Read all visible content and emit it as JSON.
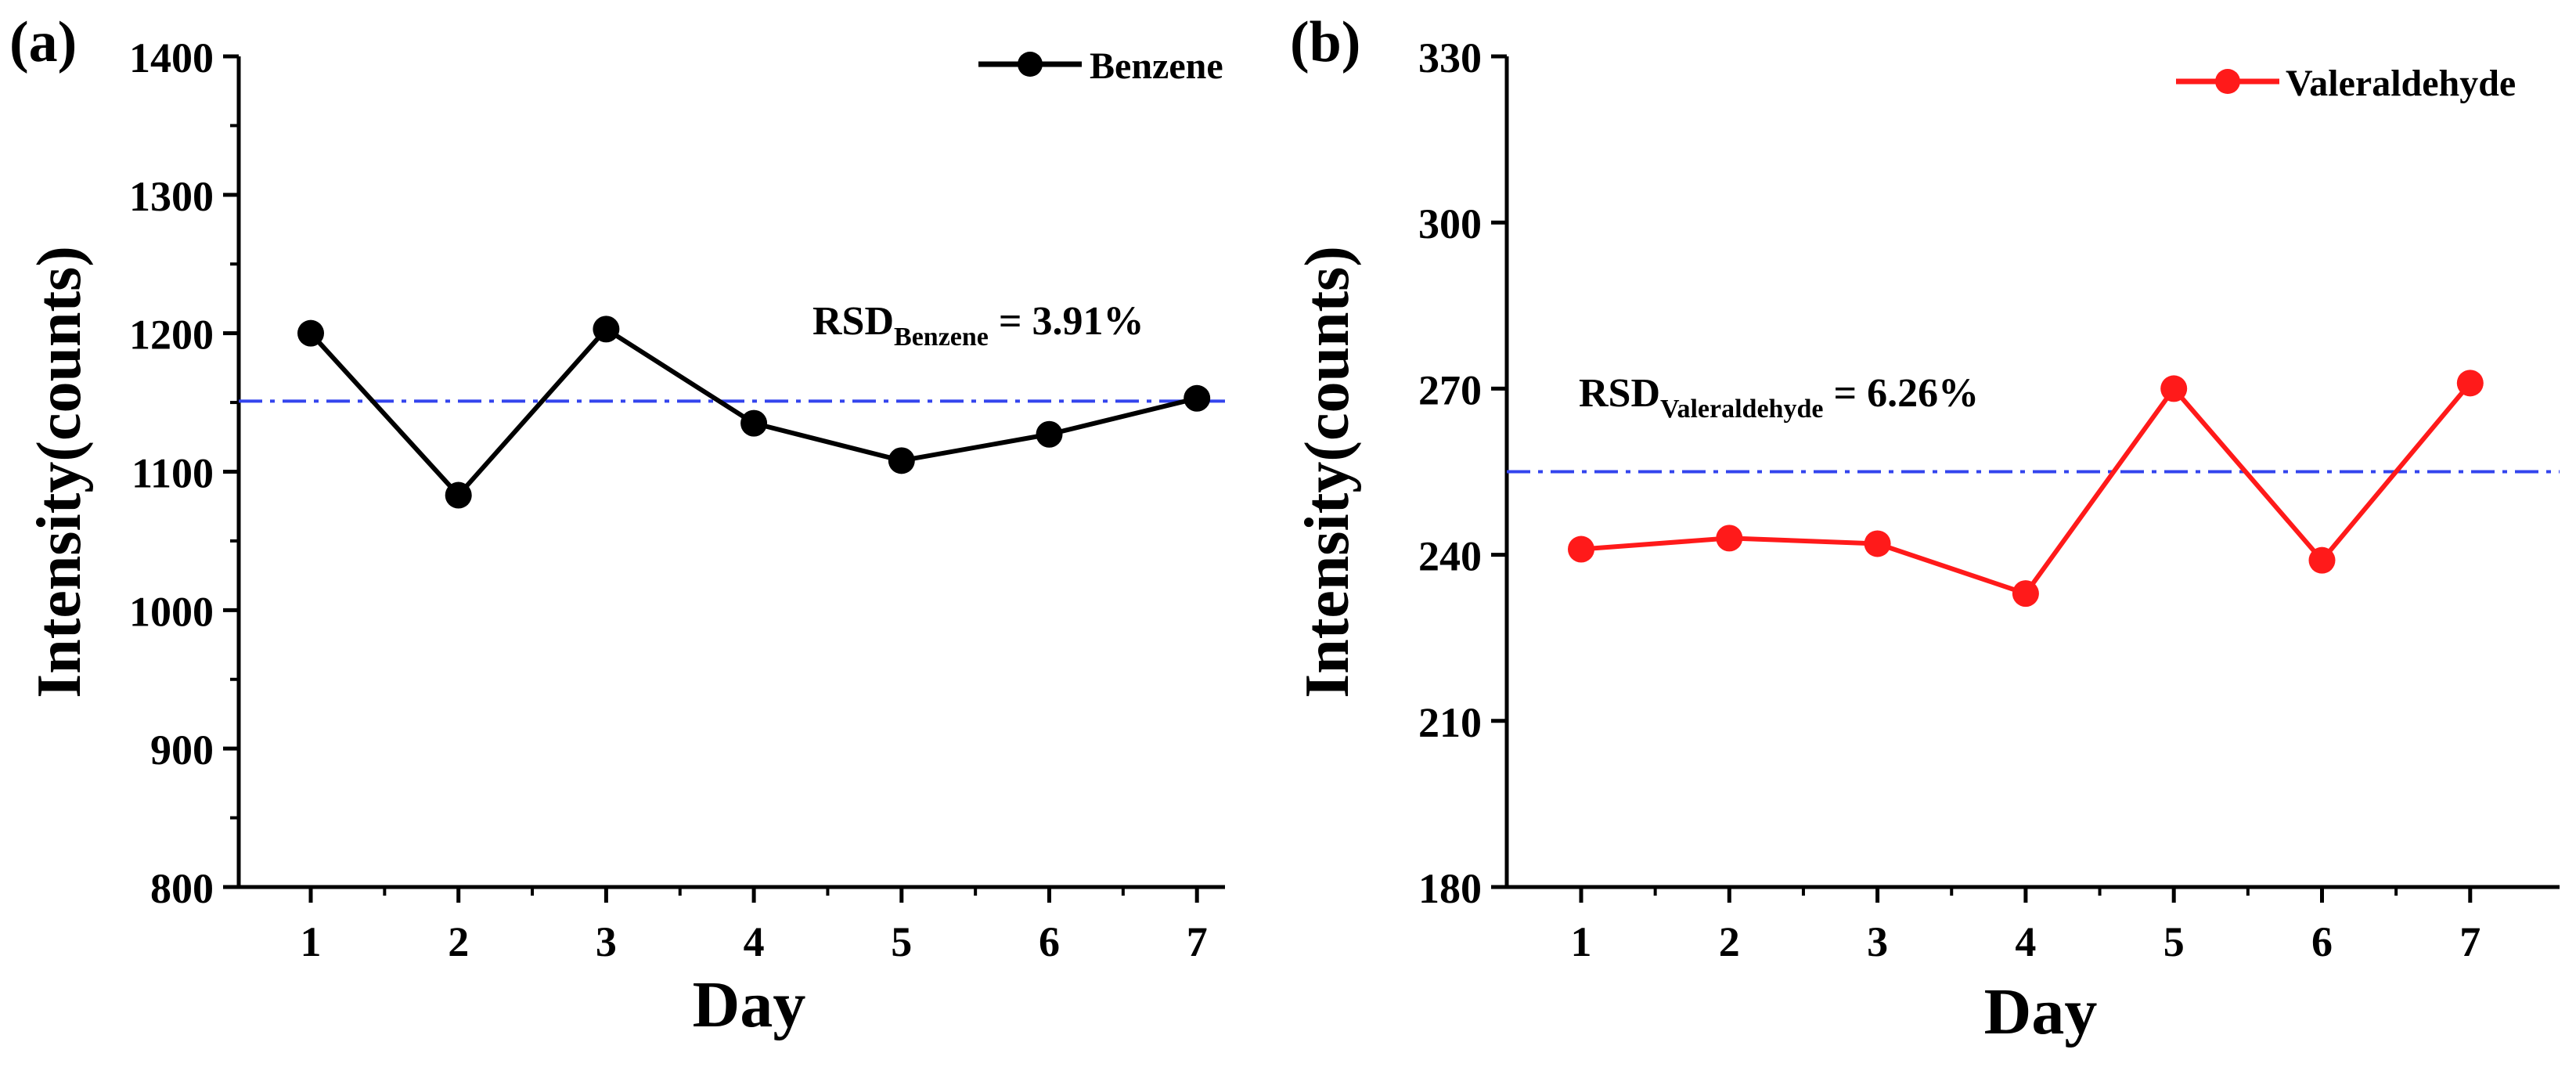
{
  "chart_data": [
    {
      "panel_label": "(a)",
      "type": "line",
      "title": "",
      "xlabel": "Day",
      "ylabel": "Intensity(counts)",
      "xlim": [
        0.5,
        7.5
      ],
      "ylim": [
        800,
        1400
      ],
      "x_ticks": [
        1,
        2,
        3,
        4,
        5,
        6,
        7
      ],
      "y_ticks": [
        800,
        900,
        1000,
        1100,
        1200,
        1300,
        1400
      ],
      "series": [
        {
          "name": "Benzene",
          "color": "#000000",
          "x": [
            1,
            2,
            3,
            4,
            5,
            6,
            7
          ],
          "values": [
            1200,
            1083,
            1203,
            1135,
            1108,
            1127,
            1153
          ]
        }
      ],
      "reference_line": {
        "value": 1151,
        "color": "#3344ee",
        "style": "dash-dot"
      },
      "annotation": {
        "main": "RSD",
        "subscript": "Benzene",
        "suffix": " = 3.91%"
      },
      "legend_position": "top-right",
      "grid": false
    },
    {
      "panel_label": "(b)",
      "type": "line",
      "title": "",
      "xlabel": "Day",
      "ylabel": "Intensity(counts)",
      "xlim": [
        0.5,
        7.5
      ],
      "ylim": [
        180,
        330
      ],
      "x_ticks": [
        1,
        2,
        3,
        4,
        5,
        6,
        7
      ],
      "y_ticks": [
        180,
        210,
        240,
        270,
        300,
        330
      ],
      "series": [
        {
          "name": "Valeraldehyde",
          "color": "#ff1a1a",
          "x": [
            1,
            2,
            3,
            4,
            5,
            6,
            7
          ],
          "values": [
            241,
            243,
            242,
            233,
            270,
            239,
            271
          ]
        }
      ],
      "reference_line": {
        "value": 255,
        "color": "#3344ee",
        "style": "dash-dot"
      },
      "annotation": {
        "main": "RSD",
        "subscript": "Valeraldehyde",
        "suffix": " = 6.26%"
      },
      "legend_position": "top-right",
      "grid": false
    }
  ]
}
